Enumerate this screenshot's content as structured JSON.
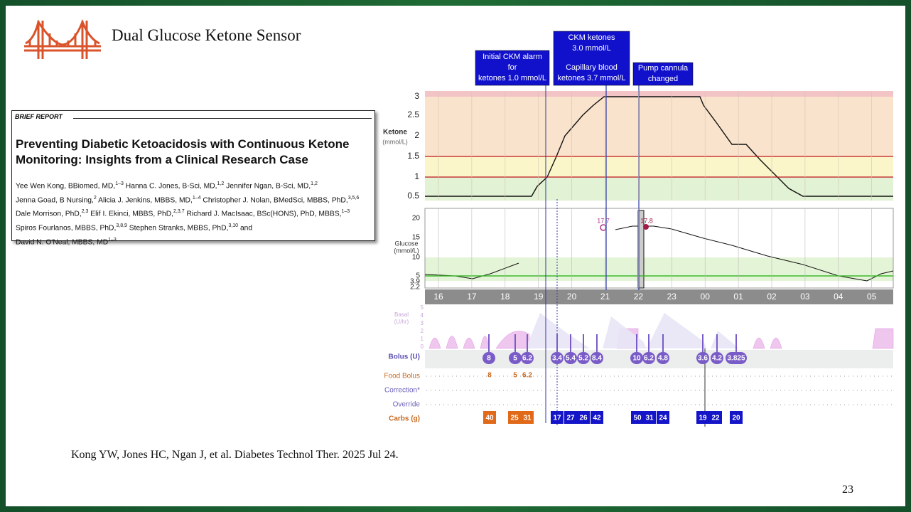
{
  "header": {
    "title": "Dual Glucose Ketone Sensor"
  },
  "paper": {
    "section": "BRIEF REPORT",
    "title_lines": [
      "Preventing Diabetic Ketoacidosis with Continuous Ketone",
      "Monitoring: Insights from a Clinical Research Case"
    ],
    "author_lines": [
      [
        [
          "Yee Wen Kong, BBiomed, MD,",
          "1–3"
        ],
        [
          " Hanna C. Jones, B-Sci, MD,",
          "1,2"
        ],
        [
          " Jennifer Ngan, B-Sci, MD,",
          "1,2"
        ]
      ],
      [
        [
          "Jenna Goad, B Nursing,",
          "2"
        ],
        [
          " Alicia J. Jenkins, MBBS, MD,",
          "1–4"
        ],
        [
          " Christopher J. Nolan, BMedSci, MBBS, PhD,",
          "3,5,6"
        ]
      ],
      [
        [
          "Dale Morrison, PhD,",
          "2,3"
        ],
        [
          " Elif I. Ekinci, MBBS, PhD,",
          "2,3,7"
        ],
        [
          " Richard J. MacIsaac, BSc(HONS), PhD, MBBS,",
          "1–3"
        ]
      ],
      [
        [
          "Spiros Fourlanos, MBBS, PhD,",
          "3,8,9"
        ],
        [
          " Stephen Stranks, MBBS, PhD,",
          "3,10"
        ],
        [
          " and",
          ""
        ]
      ],
      [
        [
          "David N. O'Neal, MBBS, MD",
          "1–3"
        ]
      ]
    ]
  },
  "figure": {
    "callouts": [
      [
        "Initial CKM alarm",
        "for",
        "ketones 1.0 mmol/L"
      ],
      [
        "CKM ketones",
        "3.0 mmol/L",
        "Capillary blood",
        "ketones 3.7 mmol/L"
      ],
      [
        "Pump cannula",
        "changed"
      ]
    ],
    "ketone_axis": {
      "label": [
        "Ketone",
        "(mmol/L)"
      ],
      "ticks": [
        "3",
        "2.5",
        "2",
        "1.5",
        "1",
        "0.5"
      ]
    },
    "glucose_axis": {
      "label": [
        "Glucose",
        "(mmol/L)"
      ],
      "ticks": [
        "20",
        "15",
        "10",
        "5",
        "3.9",
        "2.2"
      ]
    },
    "glucose_labels": [
      "17.7",
      "17.8"
    ],
    "hours": [
      "16",
      "17",
      "18",
      "19",
      "20",
      "21",
      "22",
      "23",
      "00",
      "01",
      "02",
      "03",
      "04",
      "05"
    ],
    "basal_axis": {
      "label": [
        "Basal",
        "(U/hr)"
      ],
      "ticks": [
        "5",
        "4",
        "3",
        "2",
        "1",
        "0"
      ]
    },
    "row_labels": [
      "Bolus (U)",
      "Food Bolus",
      "Correction*",
      "Override",
      "Carbs (g)"
    ],
    "bolus": [
      "8",
      "5",
      "6.2",
      "3.4",
      "5.4",
      "5.2",
      "8.4",
      "10",
      "6.2",
      "4.8",
      "3.6",
      "4.2",
      "3.825"
    ],
    "food_bolus": [
      "8",
      "5",
      "6.2"
    ],
    "carbs": [
      "40",
      "25",
      "31",
      "17",
      "27",
      "26",
      "42",
      "50",
      "31",
      "24",
      "19",
      "22",
      "20"
    ]
  },
  "citation": "Kong YW, Jones HC, Ngan J, et al. Diabetes Technol Ther. 2025 Jul 24.",
  "page_number": "23"
}
